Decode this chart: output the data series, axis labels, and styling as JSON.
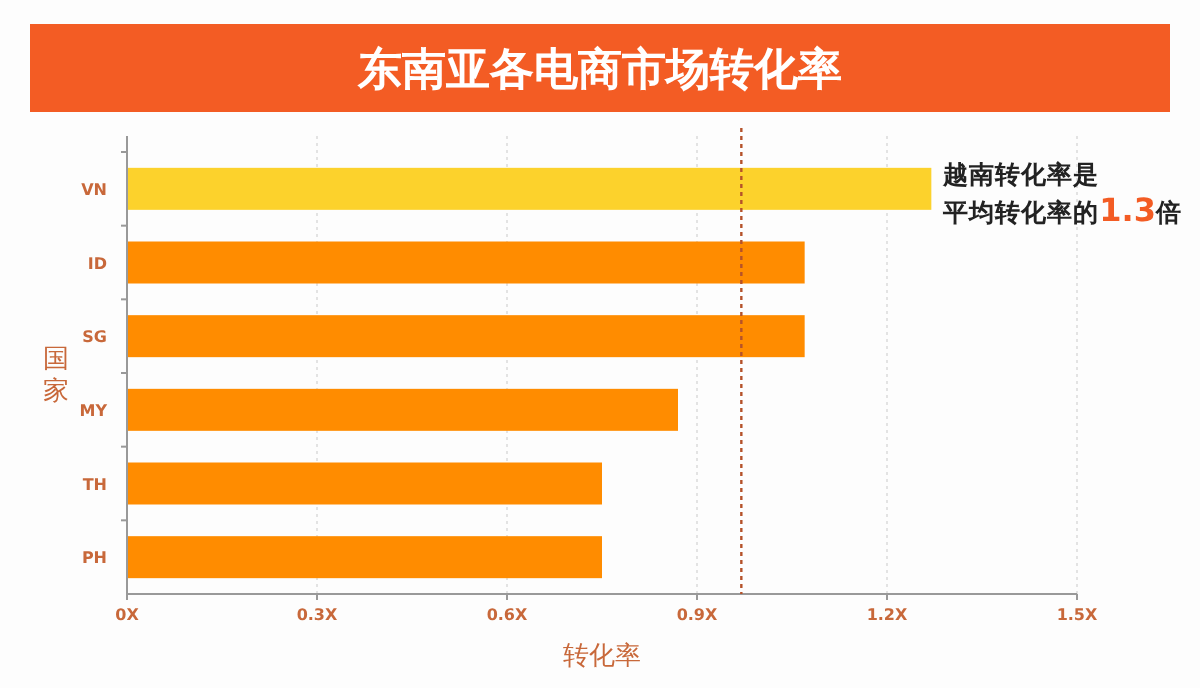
{
  "chart_data": {
    "type": "bar",
    "orientation": "horizontal",
    "title": "东南亚各电商市场转化率",
    "xlabel": "转化率",
    "ylabel": "国家",
    "categories": [
      "VN",
      "ID",
      "SG",
      "MY",
      "TH",
      "PH"
    ],
    "values": [
      1.27,
      1.07,
      1.07,
      0.87,
      0.75,
      0.75
    ],
    "colors": [
      "#fcd22c",
      "#ff8c00",
      "#ff8c00",
      "#ff8c00",
      "#ff8c00",
      "#ff8c00"
    ],
    "xlim": [
      0,
      1.5
    ],
    "xticks": [
      {
        "value": 0,
        "label": "0X"
      },
      {
        "value": 0.3,
        "label": "0.3X"
      },
      {
        "value": 0.6,
        "label": "0.6X"
      },
      {
        "value": 0.9,
        "label": "0.9X"
      },
      {
        "value": 1.2,
        "label": "1.2X"
      },
      {
        "value": 1.5,
        "label": "1.5X"
      }
    ],
    "grid": "x",
    "ref_lines": [
      {
        "axis": "x",
        "value": 0.97,
        "color": "#b5522a",
        "line_style": "dotted"
      }
    ],
    "annotations": [
      {
        "text": "越南转化率是平均转化率的**1.3**倍",
        "x": 1.27,
        "y": "VN"
      }
    ]
  }
}
